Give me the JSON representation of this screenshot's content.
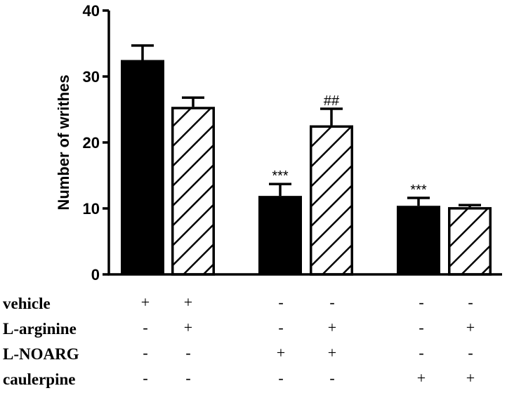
{
  "chart_data": {
    "type": "bar",
    "title": "",
    "xlabel": "",
    "ylabel": "Number of writhes",
    "ylim": [
      0,
      40
    ],
    "yticks": [
      0,
      10,
      20,
      30,
      40
    ],
    "grid": false,
    "legend": null,
    "bars": [
      {
        "group": 1,
        "fill": "solid",
        "value": 32.5,
        "error": 2.2,
        "annotation": ""
      },
      {
        "group": 1,
        "fill": "hatched",
        "value": 25.4,
        "error": 1.4,
        "annotation": ""
      },
      {
        "group": 2,
        "fill": "solid",
        "value": 11.9,
        "error": 1.8,
        "annotation": "***"
      },
      {
        "group": 2,
        "fill": "hatched",
        "value": 22.6,
        "error": 2.5,
        "annotation": "##"
      },
      {
        "group": 3,
        "fill": "solid",
        "value": 10.4,
        "error": 1.2,
        "annotation": "***"
      },
      {
        "group": 3,
        "fill": "hatched",
        "value": 10.2,
        "error": 0.3,
        "annotation": ""
      }
    ],
    "treatment_table": {
      "rows": [
        {
          "label": "vehicle",
          "signs": [
            "+",
            "+",
            "-",
            "-",
            "-",
            "-"
          ]
        },
        {
          "label": "L-arginine",
          "signs": [
            "-",
            "+",
            "-",
            "+",
            "-",
            "+"
          ]
        },
        {
          "label": "L-NOARG",
          "signs": [
            "-",
            "-",
            "+",
            "+",
            "-",
            "-"
          ]
        },
        {
          "label": "caulerpine",
          "signs": [
            "-",
            "-",
            "-",
            "-",
            "+",
            "+"
          ]
        }
      ]
    }
  }
}
